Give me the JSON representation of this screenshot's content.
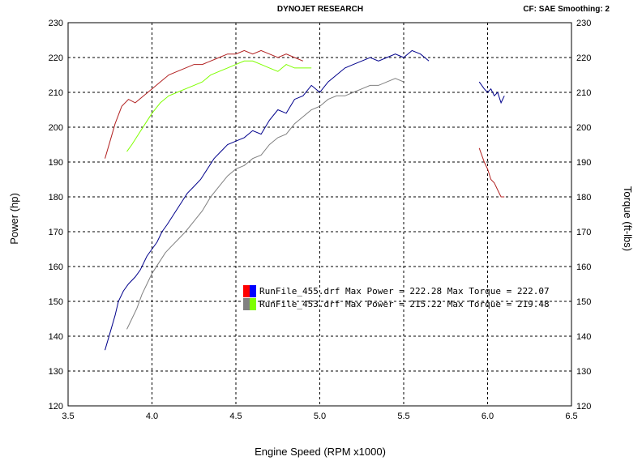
{
  "header": {
    "title": "DYNOJET RESEARCH",
    "info": "CF: SAE  Smoothing: 2"
  },
  "chart_data": {
    "type": "line",
    "title": "DYNOJET RESEARCH",
    "xlabel": "Engine Speed (RPM x1000)",
    "ylabel": "Power (hp)",
    "y2label": "Torque (ft-lbs)",
    "xlim": [
      3.5,
      6.5
    ],
    "ylim": [
      120,
      230
    ],
    "y2lim": [
      120,
      230
    ],
    "xticks": [
      "3.5",
      "4.0",
      "4.5",
      "5.0",
      "5.5",
      "6.0",
      "6.5"
    ],
    "yticks": [
      "120",
      "130",
      "140",
      "150",
      "160",
      "170",
      "180",
      "190",
      "200",
      "210",
      "220",
      "230"
    ],
    "grid": true,
    "legend_position": "center",
    "colors": {
      "run455_power": "#00008b",
      "run455_torque": "#b22222",
      "run453_power": "#808080",
      "run453_torque": "#7fff00",
      "grid": "#000000",
      "plot_bg": "#ffffff"
    },
    "legend": [
      {
        "swatch": [
          "#ff0000",
          "#0000ff"
        ],
        "text": "RunFile_455.drf Max Power = 222.28     Max Torque = 222.07"
      },
      {
        "swatch": [
          "#808080",
          "#7fff00"
        ],
        "text": "RunFile_453.drf Max Power = 215.22     Max Torque = 219.48"
      }
    ],
    "series": [
      {
        "name": "RunFile_455.drf Power",
        "color": "#00008b",
        "segments": [
          [
            [
              3.72,
              136
            ],
            [
              3.75,
              141
            ],
            [
              3.78,
              146
            ],
            [
              3.8,
              150
            ],
            [
              3.83,
              153
            ],
            [
              3.86,
              155
            ],
            [
              3.9,
              157
            ],
            [
              3.93,
              159
            ],
            [
              3.97,
              163
            ],
            [
              4.0,
              165
            ],
            [
              4.03,
              167
            ],
            [
              4.06,
              170
            ],
            [
              4.09,
              172
            ],
            [
              4.13,
              175
            ],
            [
              4.17,
              178
            ],
            [
              4.21,
              181
            ],
            [
              4.25,
              183
            ],
            [
              4.29,
              185
            ],
            [
              4.33,
              188
            ],
            [
              4.37,
              191
            ],
            [
              4.41,
              193
            ],
            [
              4.45,
              195
            ],
            [
              4.5,
              196
            ],
            [
              4.55,
              197
            ],
            [
              4.6,
              199
            ],
            [
              4.65,
              198
            ],
            [
              4.7,
              202
            ],
            [
              4.75,
              205
            ],
            [
              4.8,
              204
            ],
            [
              4.85,
              208
            ],
            [
              4.9,
              209
            ],
            [
              4.95,
              212
            ],
            [
              5.0,
              210
            ],
            [
              5.05,
              213
            ],
            [
              5.1,
              215
            ],
            [
              5.15,
              217
            ],
            [
              5.2,
              218
            ],
            [
              5.25,
              219
            ],
            [
              5.3,
              220
            ],
            [
              5.35,
              219
            ],
            [
              5.4,
              220
            ],
            [
              5.45,
              221
            ],
            [
              5.5,
              220
            ],
            [
              5.55,
              222
            ],
            [
              5.6,
              221
            ],
            [
              5.65,
              219
            ]
          ],
          [
            [
              5.95,
              213
            ],
            [
              5.98,
              211
            ],
            [
              6.0,
              210
            ],
            [
              6.02,
              211
            ],
            [
              6.04,
              209
            ],
            [
              6.06,
              210
            ],
            [
              6.08,
              207
            ],
            [
              6.1,
              209
            ]
          ]
        ]
      },
      {
        "name": "RunFile_455.drf Torque",
        "color": "#b22222",
        "segments": [
          [
            [
              3.72,
              191
            ],
            [
              3.75,
              196
            ],
            [
              3.78,
              201
            ],
            [
              3.82,
              206
            ],
            [
              3.86,
              208
            ],
            [
              3.9,
              207
            ],
            [
              3.95,
              209
            ],
            [
              4.0,
              211
            ],
            [
              4.05,
              213
            ],
            [
              4.1,
              215
            ],
            [
              4.15,
              216
            ],
            [
              4.2,
              217
            ],
            [
              4.25,
              218
            ],
            [
              4.3,
              218
            ],
            [
              4.35,
              219
            ],
            [
              4.4,
              220
            ],
            [
              4.45,
              221
            ],
            [
              4.5,
              221
            ],
            [
              4.55,
              222
            ],
            [
              4.6,
              221
            ],
            [
              4.65,
              222
            ],
            [
              4.7,
              221
            ],
            [
              4.75,
              220
            ],
            [
              4.8,
              221
            ],
            [
              4.85,
              220
            ],
            [
              4.9,
              219
            ]
          ],
          [
            [
              5.95,
              194
            ],
            [
              5.98,
              190
            ],
            [
              6.0,
              188
            ],
            [
              6.02,
              185
            ],
            [
              6.04,
              184
            ],
            [
              6.06,
              182
            ],
            [
              6.08,
              180
            ],
            [
              6.1,
              180
            ]
          ]
        ]
      },
      {
        "name": "RunFile_453.drf Power",
        "color": "#808080",
        "segments": [
          [
            [
              3.85,
              142
            ],
            [
              3.88,
              145
            ],
            [
              3.91,
              148
            ],
            [
              3.94,
              152
            ],
            [
              3.97,
              155
            ],
            [
              4.0,
              158
            ],
            [
              4.04,
              161
            ],
            [
              4.08,
              164
            ],
            [
              4.12,
              166
            ],
            [
              4.16,
              168
            ],
            [
              4.2,
              170
            ],
            [
              4.25,
              173
            ],
            [
              4.3,
              176
            ],
            [
              4.35,
              180
            ],
            [
              4.4,
              183
            ],
            [
              4.45,
              186
            ],
            [
              4.5,
              188
            ],
            [
              4.55,
              189
            ],
            [
              4.6,
              191
            ],
            [
              4.65,
              192
            ],
            [
              4.7,
              195
            ],
            [
              4.75,
              197
            ],
            [
              4.8,
              198
            ],
            [
              4.85,
              201
            ],
            [
              4.9,
              203
            ],
            [
              4.95,
              205
            ],
            [
              5.0,
              206
            ],
            [
              5.05,
              208
            ],
            [
              5.1,
              209
            ],
            [
              5.15,
              209
            ],
            [
              5.2,
              210
            ],
            [
              5.25,
              211
            ],
            [
              5.3,
              212
            ],
            [
              5.35,
              212
            ],
            [
              5.4,
              213
            ],
            [
              5.45,
              214
            ],
            [
              5.5,
              213
            ]
          ]
        ]
      },
      {
        "name": "RunFile_453.drf Torque",
        "color": "#7fff00",
        "segments": [
          [
            [
              3.85,
              193
            ],
            [
              3.88,
              195
            ],
            [
              3.92,
              198
            ],
            [
              3.96,
              201
            ],
            [
              4.0,
              204
            ],
            [
              4.05,
              207
            ],
            [
              4.1,
              209
            ],
            [
              4.15,
              210
            ],
            [
              4.2,
              211
            ],
            [
              4.25,
              212
            ],
            [
              4.3,
              213
            ],
            [
              4.35,
              215
            ],
            [
              4.4,
              216
            ],
            [
              4.45,
              217
            ],
            [
              4.5,
              218
            ],
            [
              4.55,
              219
            ],
            [
              4.6,
              219
            ],
            [
              4.65,
              218
            ],
            [
              4.7,
              217
            ],
            [
              4.75,
              216
            ],
            [
              4.8,
              218
            ],
            [
              4.85,
              217
            ],
            [
              4.9,
              217
            ],
            [
              4.95,
              217
            ]
          ]
        ]
      }
    ]
  }
}
